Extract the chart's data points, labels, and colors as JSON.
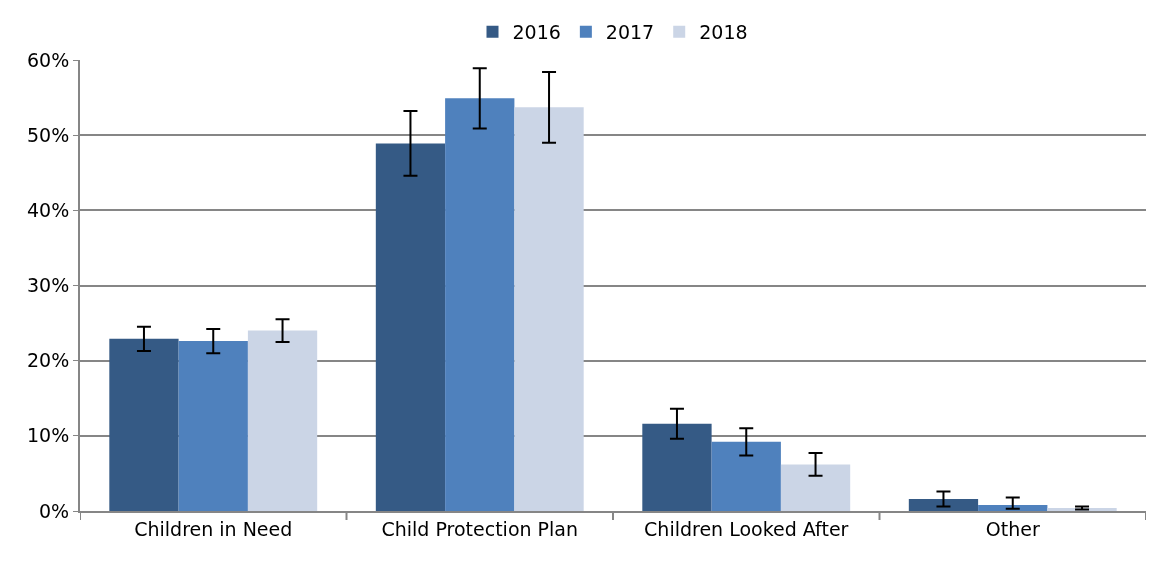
{
  "chart_data": {
    "type": "bar",
    "categories": [
      "Children in Need",
      "Child Protection Plan",
      "Children Looked After",
      "Other"
    ],
    "series": [
      {
        "name": "2016",
        "color": "#355a85",
        "values": [
          22.9,
          48.9,
          11.6,
          1.6
        ],
        "errors": [
          1.6,
          4.3,
          2.0,
          1.0
        ]
      },
      {
        "name": "2017",
        "color": "#4f81bd",
        "values": [
          22.6,
          54.9,
          9.2,
          0.8
        ],
        "errors": [
          1.6,
          4.0,
          1.8,
          [
            0.3,
            1.8
          ]
        ]
      },
      {
        "name": "2018",
        "color": "#cbd5e6",
        "values": [
          24.0,
          53.7,
          6.2,
          0.4
        ],
        "errors": [
          1.5,
          4.7,
          1.5,
          0.2
        ]
      }
    ],
    "ylim": [
      0,
      60
    ],
    "yticks": [
      {
        "value": 0,
        "label": "0%"
      },
      {
        "value": 10,
        "label": "10%"
      },
      {
        "value": 20,
        "label": "20%"
      },
      {
        "value": 30,
        "label": "30%"
      },
      {
        "value": 40,
        "label": "40%"
      },
      {
        "value": 50,
        "label": "50%"
      },
      {
        "value": 60,
        "label": "60%"
      }
    ],
    "grid": "y",
    "legend": "top"
  }
}
